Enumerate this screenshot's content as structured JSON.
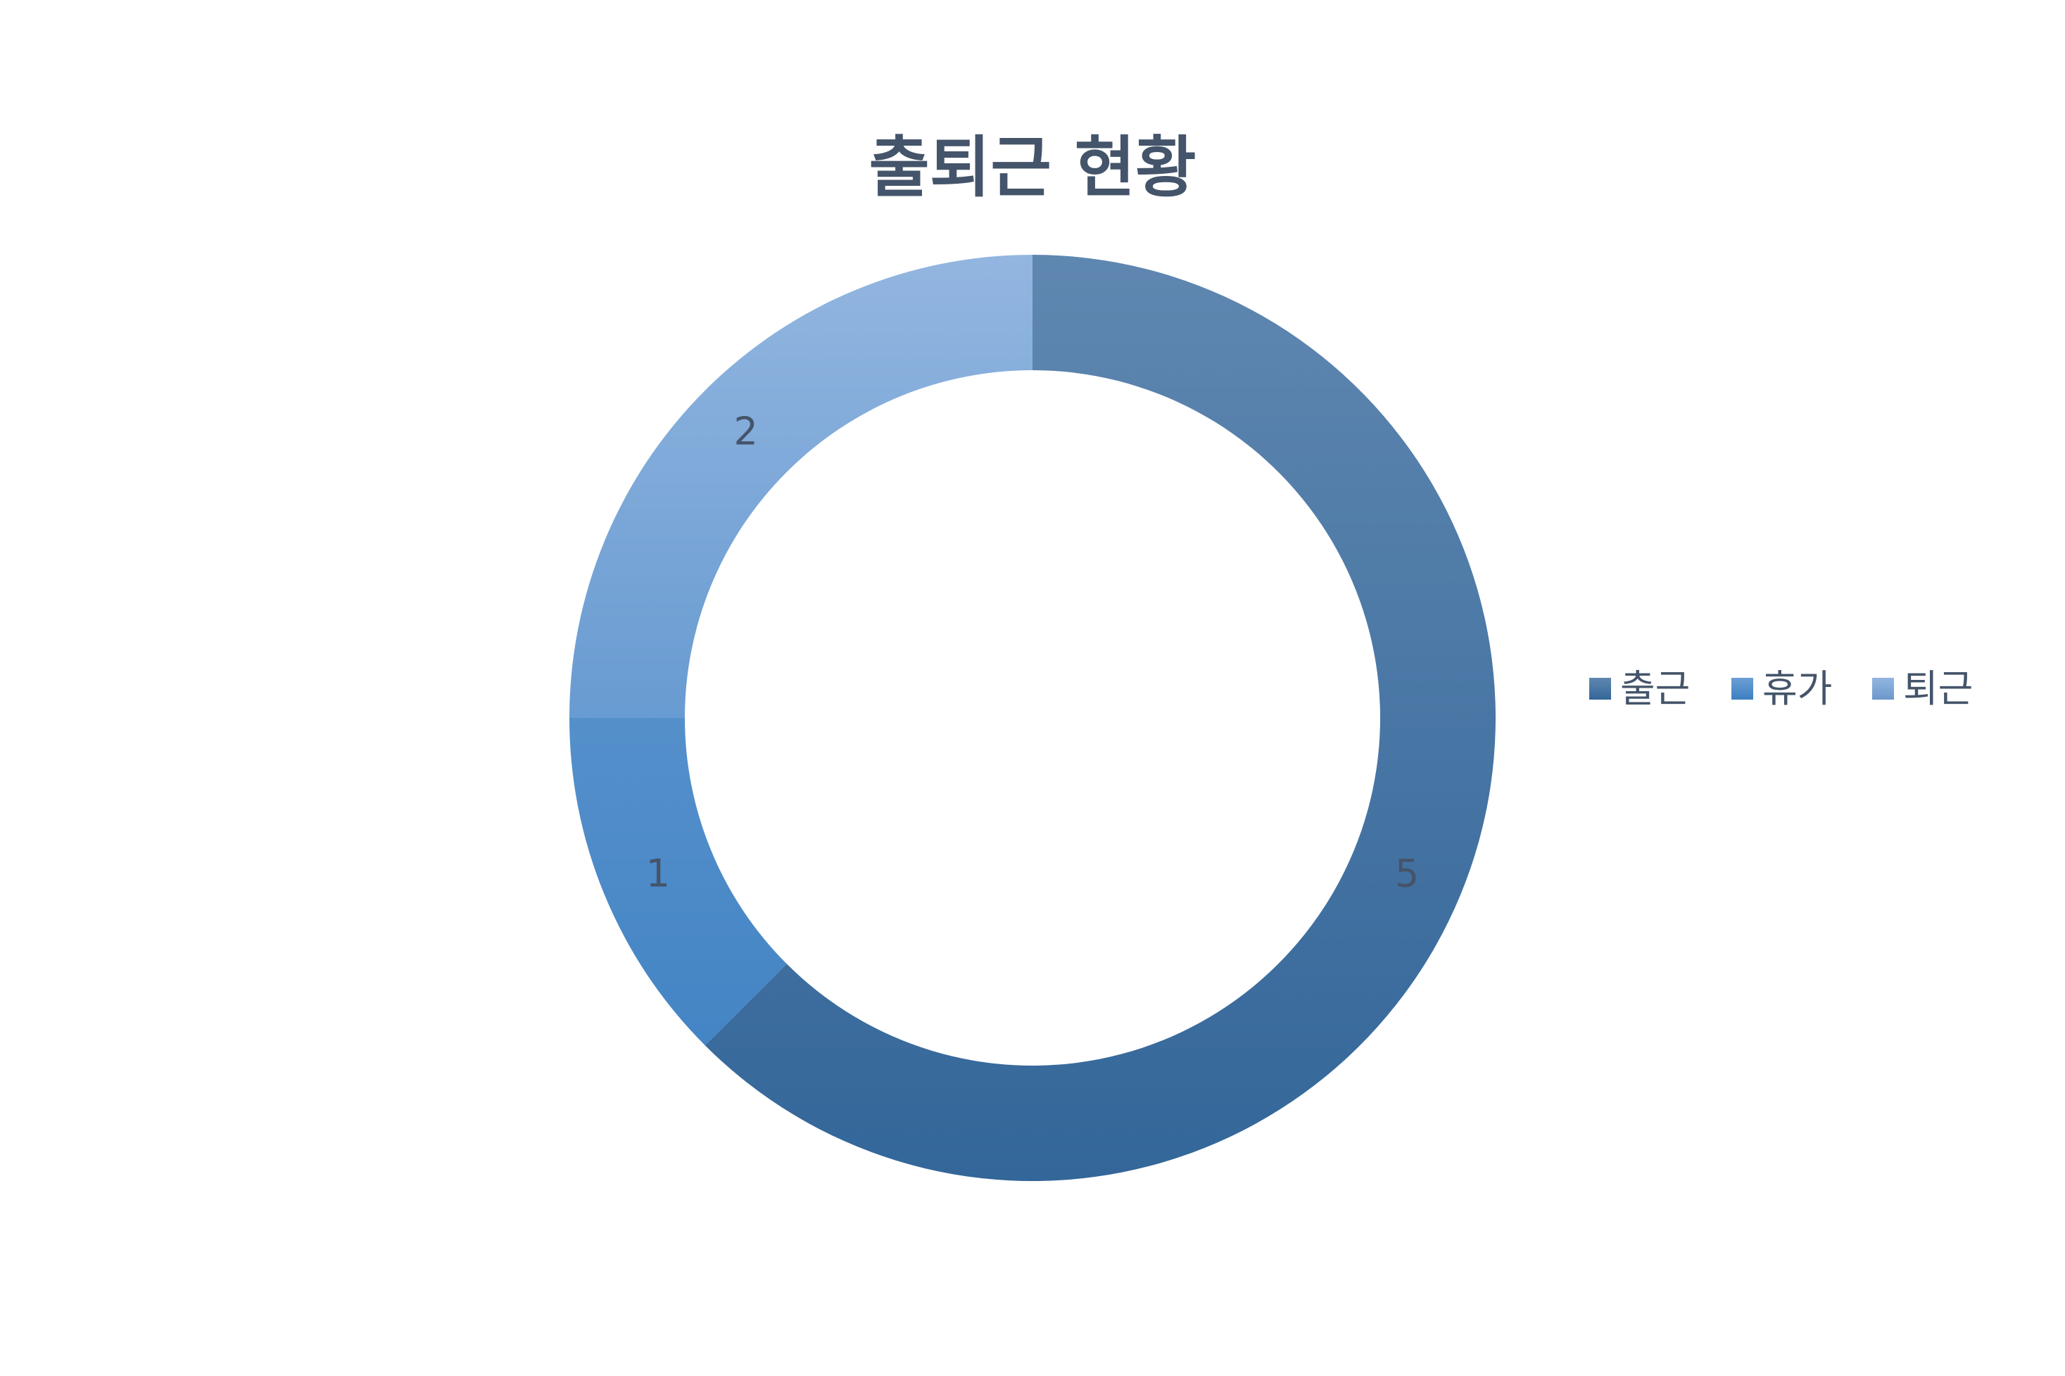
{
  "chart_data": {
    "type": "pie",
    "subtype": "doughnut",
    "title": "출퇴근 현황",
    "categories": [
      "출근",
      "휴가",
      "퇴근"
    ],
    "values": [
      5,
      1,
      2
    ],
    "data_labels": [
      "5",
      "1",
      "2"
    ],
    "legend": {
      "position": "right",
      "entries": [
        "출근",
        "휴가",
        "퇴근"
      ]
    },
    "colors": {
      "출근": [
        "#5f87b0",
        "#336699"
      ],
      "휴가": [
        "#6c9fd3",
        "#3d80c2"
      ],
      "퇴근": [
        "#93b6e0",
        "#6b98cb"
      ],
      "text": "#44546a"
    }
  }
}
